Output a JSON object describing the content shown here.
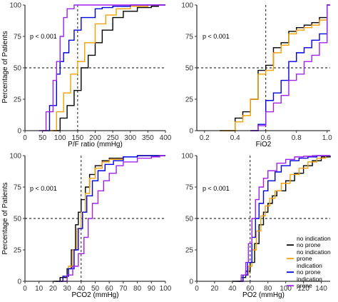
{
  "figure": {
    "ylabel": "Percentage of Patients"
  },
  "legend": {
    "entries": [
      {
        "lines": [
          "no indication",
          "no prone"
        ],
        "color": "#000000"
      },
      {
        "lines": [
          "no indication",
          "prone"
        ],
        "color": "#f5a000"
      },
      {
        "lines": [
          "indication",
          "no prone"
        ],
        "color": "#0000e6"
      },
      {
        "lines": [
          "indication",
          "prone"
        ],
        "color": "#a020f0"
      }
    ]
  },
  "chart_data": [
    {
      "type": "line",
      "subtype": "empirical cumulative distribution (step)",
      "xlabel": "P/F ratio (mmHg)",
      "xlim": [
        0,
        400
      ],
      "xticks": [
        0,
        50,
        100,
        150,
        200,
        250,
        300,
        350,
        400
      ],
      "ylim": [
        0,
        100
      ],
      "yticks": [
        0,
        25,
        50,
        75,
        100
      ],
      "annotation": "p < 0.001",
      "reference_lines": {
        "x": 150,
        "y": 50
      },
      "series": [
        {
          "color": "#000000",
          "x": [
            80,
            100,
            120,
            140,
            160,
            180,
            200,
            220,
            250,
            280,
            320,
            360,
            380
          ],
          "y": [
            0,
            10,
            20,
            32,
            50,
            60,
            70,
            80,
            90,
            95,
            98,
            99,
            100
          ]
        },
        {
          "color": "#f5a000",
          "x": [
            70,
            90,
            110,
            130,
            150,
            170,
            200,
            230,
            260,
            300,
            350
          ],
          "y": [
            0,
            15,
            30,
            45,
            55,
            70,
            85,
            92,
            97,
            99,
            100
          ]
        },
        {
          "color": "#0000e6",
          "x": [
            50,
            70,
            90,
            100,
            110,
            125,
            140,
            160,
            200,
            220,
            250,
            300
          ],
          "y": [
            0,
            20,
            45,
            55,
            62,
            72,
            80,
            90,
            97,
            98,
            99,
            100
          ]
        },
        {
          "color": "#a020f0",
          "x": [
            40,
            60,
            80,
            90,
            100,
            110,
            120,
            140,
            200,
            250
          ],
          "y": [
            0,
            15,
            40,
            55,
            75,
            90,
            97,
            100,
            100,
            100
          ]
        }
      ]
    },
    {
      "type": "line",
      "subtype": "empirical cumulative distribution (step)",
      "xlabel": "FiO2",
      "xlim": [
        0.15,
        1.02
      ],
      "xticks": [
        0.2,
        0.4,
        0.6,
        0.8,
        1.0
      ],
      "xticklabels": [
        "0.2",
        "0.4",
        "0.6",
        "0.8",
        "1.0"
      ],
      "ylim": [
        0,
        100
      ],
      "yticks": [
        0,
        25,
        50,
        75,
        100
      ],
      "annotation": "p < 0.001",
      "reference_lines": {
        "x": 0.6,
        "y": 50
      },
      "series": [
        {
          "color": "#000000",
          "x": [
            0.3,
            0.4,
            0.45,
            0.5,
            0.55,
            0.6,
            0.65,
            0.7,
            0.75,
            0.8,
            0.85,
            0.9,
            0.95,
            1.0
          ],
          "y": [
            0,
            10,
            15,
            25,
            48,
            52,
            66,
            70,
            79,
            82,
            84,
            86,
            90,
            100
          ]
        },
        {
          "color": "#f5a000",
          "x": [
            0.3,
            0.4,
            0.45,
            0.5,
            0.55,
            0.6,
            0.65,
            0.7,
            0.75,
            0.8,
            0.85,
            0.9,
            0.95,
            1.0
          ],
          "y": [
            0,
            7,
            12,
            25,
            45,
            48,
            62,
            68,
            77,
            80,
            82,
            84,
            88,
            100
          ]
        },
        {
          "color": "#0000e6",
          "x": [
            0.5,
            0.55,
            0.6,
            0.65,
            0.7,
            0.75,
            0.8,
            0.85,
            0.9,
            0.95,
            1.0
          ],
          "y": [
            0,
            5,
            24,
            30,
            40,
            55,
            62,
            66,
            72,
            77,
            100
          ]
        },
        {
          "color": "#a020f0",
          "x": [
            0.5,
            0.55,
            0.6,
            0.65,
            0.7,
            0.75,
            0.8,
            0.85,
            0.9,
            0.95,
            1.0
          ],
          "y": [
            0,
            4,
            15,
            22,
            28,
            40,
            45,
            55,
            60,
            70,
            100
          ]
        }
      ]
    },
    {
      "type": "line",
      "subtype": "empirical cumulative distribution (step)",
      "xlabel": "PCO2 (mmHg)",
      "xlim": [
        0,
        100
      ],
      "xticks": [
        0,
        10,
        20,
        30,
        40,
        50,
        60,
        70,
        80,
        90,
        100
      ],
      "ylim": [
        0,
        100
      ],
      "yticks": [
        0,
        25,
        50,
        75,
        100
      ],
      "annotation": "p < 0.001",
      "reference_lines": {
        "x": 40,
        "y": 50
      },
      "series": [
        {
          "color": "#000000",
          "x": [
            20,
            25,
            30,
            33,
            36,
            38,
            40,
            43,
            46,
            50,
            55,
            60,
            70,
            80,
            90
          ],
          "y": [
            0,
            3,
            10,
            25,
            45,
            55,
            65,
            75,
            85,
            92,
            96,
            98,
            99,
            100,
            100
          ]
        },
        {
          "color": "#f5a000",
          "x": [
            22,
            27,
            31,
            34,
            37,
            40,
            43,
            46,
            50,
            55,
            60,
            70,
            80
          ],
          "y": [
            0,
            4,
            12,
            25,
            42,
            55,
            70,
            82,
            90,
            95,
            97,
            99,
            100
          ]
        },
        {
          "color": "#0000e6",
          "x": [
            22,
            27,
            31,
            35,
            38,
            41,
            44,
            48,
            52,
            57,
            63,
            70,
            80
          ],
          "y": [
            0,
            4,
            10,
            25,
            42,
            55,
            68,
            80,
            88,
            93,
            96,
            99,
            100
          ]
        },
        {
          "color": "#a020f0",
          "x": [
            25,
            30,
            34,
            38,
            42,
            45,
            48,
            52,
            56,
            60,
            65,
            70,
            80,
            90,
            96
          ],
          "y": [
            0,
            5,
            12,
            22,
            35,
            50,
            62,
            72,
            80,
            86,
            92,
            95,
            98,
            99,
            100
          ]
        }
      ]
    },
    {
      "type": "line",
      "subtype": "empirical cumulative distribution (step)",
      "xlabel": "PO2 (mmHg)",
      "xlim": [
        0,
        150
      ],
      "xticks": [
        0,
        20,
        40,
        60,
        80,
        100,
        120,
        140
      ],
      "ylim": [
        0,
        100
      ],
      "yticks": [
        0,
        25,
        50,
        75,
        100
      ],
      "annotation": "p < 0.001",
      "reference_lines": {
        "x": 60,
        "y": 50
      },
      "series": [
        {
          "color": "#000000",
          "x": [
            40,
            50,
            55,
            60,
            65,
            70,
            75,
            80,
            85,
            90,
            100,
            110,
            120,
            130,
            140,
            150
          ],
          "y": [
            0,
            3,
            8,
            15,
            30,
            45,
            55,
            62,
            68,
            72,
            80,
            86,
            92,
            96,
            99,
            100
          ]
        },
        {
          "color": "#f5a000",
          "x": [
            45,
            52,
            58,
            62,
            67,
            72,
            77,
            82,
            88,
            95,
            105,
            115,
            125,
            135,
            145
          ],
          "y": [
            0,
            5,
            12,
            25,
            40,
            52,
            60,
            66,
            72,
            78,
            85,
            90,
            95,
            98,
            100
          ]
        },
        {
          "color": "#0000e6",
          "x": [
            45,
            52,
            57,
            62,
            66,
            70,
            75,
            80,
            88,
            95,
            105,
            115,
            125,
            135
          ],
          "y": [
            0,
            5,
            15,
            35,
            50,
            62,
            72,
            80,
            87,
            92,
            96,
            98,
            99,
            100
          ]
        },
        {
          "color": "#a020f0",
          "x": [
            45,
            50,
            55,
            58,
            62,
            66,
            70,
            75,
            80,
            90,
            100,
            110,
            120,
            130
          ],
          "y": [
            0,
            5,
            15,
            30,
            50,
            65,
            75,
            82,
            88,
            94,
            97,
            99,
            99.5,
            100
          ]
        }
      ]
    }
  ]
}
